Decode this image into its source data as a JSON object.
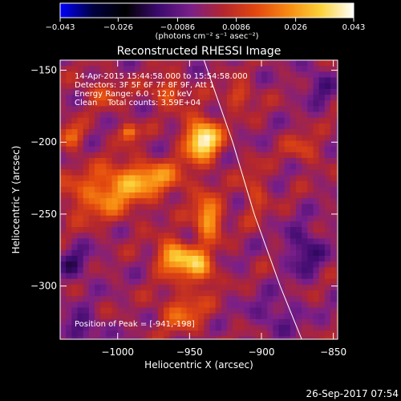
{
  "chart_data": {
    "type": "heatmap",
    "title": "Reconstructed RHESSI Image",
    "xlabel": "Heliocentric X (arcsec)",
    "ylabel": "Heliocentric Y (arcsec)",
    "xlim": [
      -1040,
      -847
    ],
    "ylim": [
      -337,
      -143
    ],
    "x_ticks": [
      -1000,
      -950,
      -900,
      -850
    ],
    "y_ticks": [
      -150,
      -200,
      -250,
      -300
    ],
    "x_tick_labels": [
      "−1000",
      "−950",
      "−900",
      "−850"
    ],
    "y_tick_labels": [
      "−150",
      "−200",
      "−250",
      "−300"
    ],
    "colorbar": {
      "min": -0.043,
      "max": 0.043,
      "ticks": [
        -0.043,
        -0.026,
        -0.0086,
        0.0086,
        0.026,
        0.043
      ],
      "tick_labels": [
        "−0.043",
        "−0.026",
        "−0.0086",
        "0.0086",
        "0.026",
        "0.043"
      ],
      "unit_label": "(photons cm⁻² s⁻¹ asec⁻²)",
      "colors": [
        "#0000ff",
        "#000040",
        "#000000",
        "#3b0a6e",
        "#7a1f8a",
        "#b3262e",
        "#e2470f",
        "#f88a12",
        "#fbd23a",
        "#ffffff"
      ]
    },
    "annotations": [
      "14-Apr-2015 15:44:58.000 to 15:54:58.000",
      "Detectors: 3F 5F 6F 7F 8F 9F, Att 1",
      "Energy Range: 6.0 - 12.0 keV",
      "Clean    Total counts: 3.59E+04"
    ],
    "peak_label": "Position of Peak = [-941,-198]",
    "peak": {
      "x": -941,
      "y": -198
    },
    "limb_curve": {
      "x": [
        -940,
        -920,
        -905,
        -887,
        -872
      ],
      "y": [
        -143,
        -200,
        -250,
        -300,
        -337
      ]
    },
    "emission_sources": [
      {
        "x": -941,
        "y": -198,
        "rx": 12,
        "ry": 14,
        "value": 0.043
      },
      {
        "x": -960,
        "y": -280,
        "rx": 12,
        "ry": 11,
        "value": 0.036
      },
      {
        "x": -937,
        "y": -253,
        "rx": 9,
        "ry": 14,
        "value": 0.031
      },
      {
        "x": -942,
        "y": -288,
        "rx": 9,
        "ry": 12,
        "value": 0.028
      },
      {
        "x": -980,
        "y": -225,
        "rx": 28,
        "ry": 12,
        "value": 0.024
      },
      {
        "x": -1010,
        "y": -238,
        "rx": 28,
        "ry": 16,
        "value": 0.02
      },
      {
        "x": -992,
        "y": -193,
        "rx": 6,
        "ry": 6,
        "value": 0.026
      },
      {
        "x": -1032,
        "y": -196,
        "rx": 8,
        "ry": 8,
        "value": 0.02
      },
      {
        "x": -965,
        "y": -165,
        "rx": 12,
        "ry": 9,
        "value": 0.018
      },
      {
        "x": -955,
        "y": -318,
        "rx": 16,
        "ry": 14,
        "value": 0.017
      },
      {
        "x": -915,
        "y": -168,
        "rx": 10,
        "ry": 8,
        "value": 0.016
      },
      {
        "x": -905,
        "y": -235,
        "rx": 8,
        "ry": 18,
        "value": 0.012
      },
      {
        "x": -870,
        "y": -205,
        "rx": 12,
        "ry": 10,
        "value": 0.012
      },
      {
        "x": -1010,
        "y": -165,
        "rx": 14,
        "ry": 10,
        "value": 0.012
      },
      {
        "x": -1025,
        "y": -330,
        "rx": 12,
        "ry": 10,
        "value": -0.015
      },
      {
        "x": -870,
        "y": -275,
        "rx": 12,
        "ry": 16,
        "value": -0.016
      },
      {
        "x": -1030,
        "y": -285,
        "rx": 12,
        "ry": 12,
        "value": -0.012
      },
      {
        "x": -860,
        "y": -160,
        "rx": 10,
        "ry": 12,
        "value": -0.012
      },
      {
        "x": -890,
        "y": -320,
        "rx": 16,
        "ry": 12,
        "value": -0.01
      }
    ]
  },
  "footer_date": "26-Sep-2017 07:54"
}
